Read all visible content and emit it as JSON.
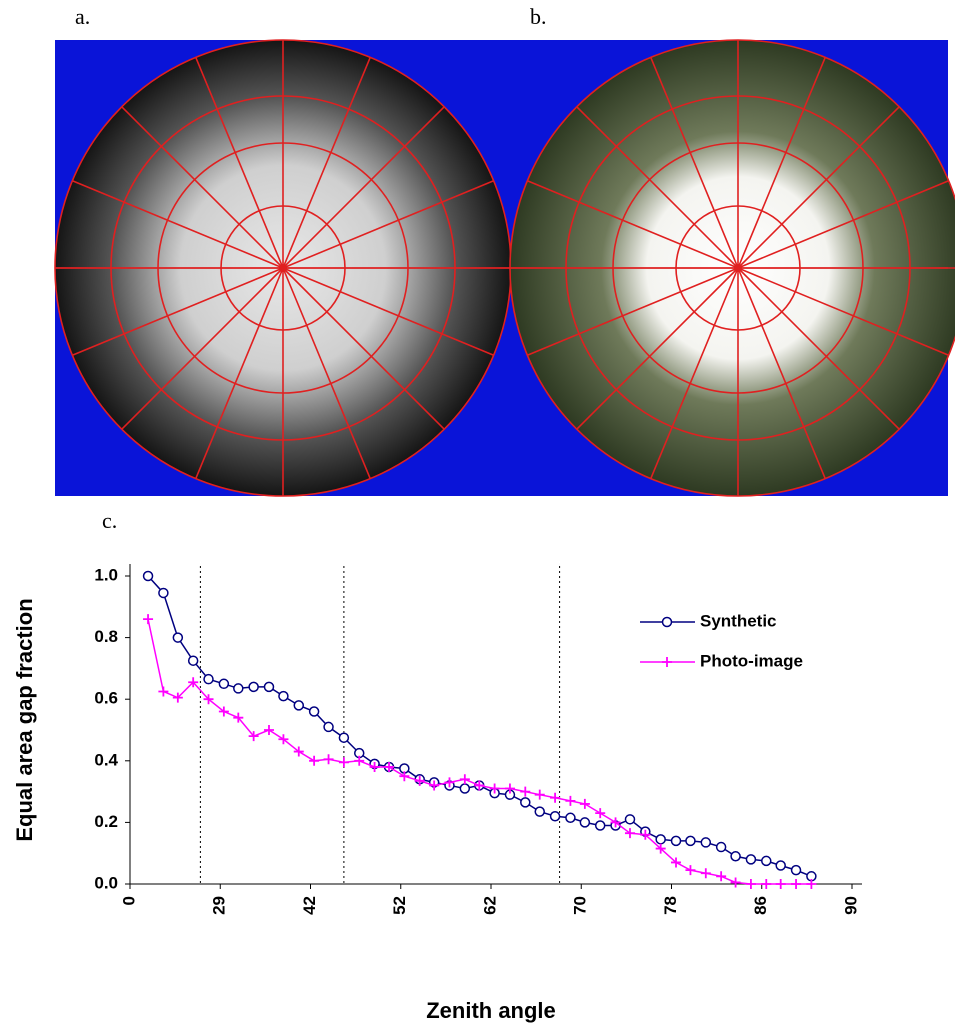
{
  "panel_labels": [
    "a.",
    "b.",
    "c."
  ],
  "chart_data": {
    "type": "line",
    "xlabel": "Zenith angle",
    "ylabel": "Equal area gap fraction",
    "x": [
      0.2,
      0.37,
      0.53,
      0.7,
      0.87,
      1.04,
      1.2,
      1.37,
      1.54,
      1.7,
      1.87,
      2.04,
      2.2,
      2.37,
      2.54,
      2.71,
      2.87,
      3.04,
      3.21,
      3.37,
      3.54,
      3.71,
      3.87,
      4.04,
      4.21,
      4.38,
      4.54,
      4.71,
      4.88,
      5.04,
      5.21,
      5.38,
      5.54,
      5.71,
      5.88,
      6.05,
      6.21,
      6.38,
      6.55,
      6.71,
      6.88,
      7.05,
      7.21,
      7.38,
      7.55
    ],
    "series": [
      {
        "name": "Synthetic",
        "color": "#000080",
        "marker": "circle",
        "values": [
          1.0,
          0.945,
          0.8,
          0.725,
          0.665,
          0.65,
          0.635,
          0.64,
          0.64,
          0.61,
          0.58,
          0.56,
          0.51,
          0.475,
          0.425,
          0.39,
          0.38,
          0.375,
          0.34,
          0.33,
          0.32,
          0.31,
          0.32,
          0.295,
          0.29,
          0.265,
          0.235,
          0.22,
          0.215,
          0.2,
          0.19,
          0.19,
          0.21,
          0.17,
          0.145,
          0.14,
          0.14,
          0.135,
          0.12,
          0.09,
          0.08,
          0.075,
          0.06,
          0.045,
          0.025
        ]
      },
      {
        "name": "Photo-image",
        "color": "#ff00ff",
        "marker": "plus",
        "values": [
          0.86,
          0.625,
          0.605,
          0.655,
          0.6,
          0.56,
          0.54,
          0.48,
          0.5,
          0.47,
          0.43,
          0.4,
          0.405,
          0.395,
          0.4,
          0.38,
          0.38,
          0.35,
          0.335,
          0.32,
          0.33,
          0.34,
          0.32,
          0.31,
          0.31,
          0.3,
          0.29,
          0.28,
          0.27,
          0.26,
          0.23,
          0.2,
          0.165,
          0.16,
          0.115,
          0.07,
          0.045,
          0.035,
          0.025,
          0.005,
          0.0,
          0.0,
          0.0,
          0.0,
          0.0
        ]
      }
    ],
    "xlim": [
      0,
      8
    ],
    "xticks": [
      {
        "value": 0,
        "label": "0"
      },
      {
        "value": 1,
        "label": "29"
      },
      {
        "value": 2,
        "label": "42"
      },
      {
        "value": 3,
        "label": "52"
      },
      {
        "value": 4,
        "label": "62"
      },
      {
        "value": 5,
        "label": "70"
      },
      {
        "value": 6,
        "label": "78"
      },
      {
        "value": 7,
        "label": "86"
      },
      {
        "value": 8,
        "label": "90"
      }
    ],
    "ylim": [
      0,
      1
    ],
    "yticks": [
      {
        "value": 0,
        "label": "0.0"
      },
      0.2,
      0.4,
      0.6,
      0.8,
      {
        "value": 1,
        "label": "1.0"
      }
    ],
    "reference_lines": [
      0.78,
      2.37,
      4.76
    ],
    "legend": "upper right"
  }
}
